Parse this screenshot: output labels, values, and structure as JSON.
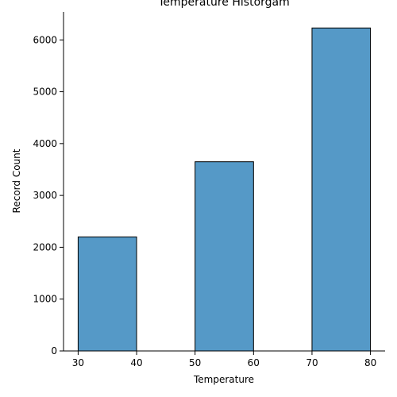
{
  "chart_data": {
    "type": "bar",
    "title": "Temperature Historgam",
    "xlabel": "Temperature",
    "ylabel": "Record Count",
    "bins": [
      {
        "x0": 30,
        "x1": 40,
        "value": 2200
      },
      {
        "x0": 40,
        "x1": 50,
        "value": 0
      },
      {
        "x0": 50,
        "x1": 60,
        "value": 3650
      },
      {
        "x0": 60,
        "x1": 70,
        "value": 0
      },
      {
        "x0": 70,
        "x1": 80,
        "value": 6230
      }
    ],
    "xlim": [
      27.5,
      82.5
    ],
    "ylim": [
      0,
      6540
    ],
    "xticks": [
      30,
      40,
      50,
      60,
      70,
      80
    ],
    "yticks": [
      0,
      1000,
      2000,
      3000,
      4000,
      5000,
      6000
    ],
    "grid": false,
    "bar_color": "#5599c7",
    "edge_color": "#000000"
  }
}
